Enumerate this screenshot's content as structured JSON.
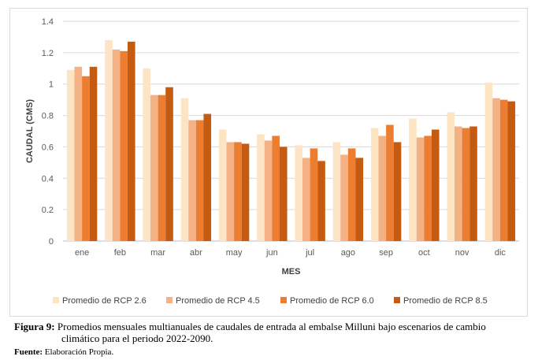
{
  "chart_data": {
    "type": "bar",
    "categories": [
      "ene",
      "feb",
      "mar",
      "abr",
      "may",
      "jun",
      "jul",
      "ago",
      "sep",
      "oct",
      "nov",
      "dic"
    ],
    "series": [
      {
        "name": "Promedio de RCP 2.6",
        "color": "#fce4c4",
        "values": [
          1.09,
          1.28,
          1.1,
          0.91,
          0.71,
          0.68,
          0.61,
          0.63,
          0.72,
          0.78,
          0.82,
          1.01
        ]
      },
      {
        "name": "Promedio de RCP 4.5",
        "color": "#f4b183",
        "values": [
          1.11,
          1.22,
          0.93,
          0.77,
          0.63,
          0.64,
          0.53,
          0.55,
          0.67,
          0.66,
          0.73,
          0.91
        ]
      },
      {
        "name": "Promedio de RCP 6.0",
        "color": "#ed7d31",
        "values": [
          1.05,
          1.21,
          0.93,
          0.77,
          0.63,
          0.67,
          0.59,
          0.59,
          0.74,
          0.67,
          0.72,
          0.9
        ]
      },
      {
        "name": "Promedio de RCP 8.5",
        "color": "#c55a11",
        "values": [
          1.11,
          1.27,
          0.98,
          0.81,
          0.62,
          0.6,
          0.51,
          0.53,
          0.63,
          0.71,
          0.73,
          0.89
        ]
      }
    ],
    "xlabel": "MES",
    "ylabel": "CAUDAL (CMS)",
    "yticks": [
      "0",
      "0.2",
      "0.4",
      "0.6",
      "0.8",
      "1",
      "1.2",
      "1.4"
    ],
    "ylim": [
      0,
      1.4
    ],
    "grid": true,
    "legend_position": "bottom"
  },
  "caption": {
    "label": "Figura 9:",
    "text_line1": " Promedios mensuales multianuales de caudales de entrada al embalse Milluni bajo escenarios de cambio",
    "text_line2": "climático para el periodo 2022-2090."
  },
  "source": {
    "label": "Fuente:",
    "text": " Elaboración Propia."
  }
}
